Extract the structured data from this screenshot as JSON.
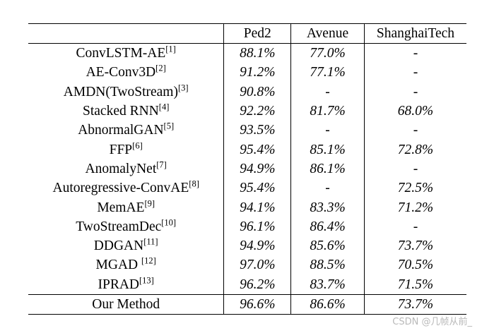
{
  "table": {
    "headers": [
      "",
      "Ped2",
      "Avenue",
      "ShanghaiTech"
    ],
    "rows": [
      {
        "method": "ConvLSTM-AE",
        "ref": "[1]",
        "ped2": "88.1%",
        "avenue": "77.0%",
        "shanghaitech": "-"
      },
      {
        "method": "AE-Conv3D",
        "ref": "[2]",
        "ped2": "91.2%",
        "avenue": "77.1%",
        "shanghaitech": "-"
      },
      {
        "method": "AMDN(TwoStream)",
        "ref": "[3]",
        "ped2": "90.8%",
        "avenue": "-",
        "shanghaitech": "-"
      },
      {
        "method": "Stacked RNN",
        "ref": "[4]",
        "ped2": "92.2%",
        "avenue": "81.7%",
        "shanghaitech": "68.0%"
      },
      {
        "method": "AbnormalGAN",
        "ref": "[5]",
        "ped2": "93.5%",
        "avenue": "-",
        "shanghaitech": "-"
      },
      {
        "method": "FFP",
        "ref": "[6]",
        "ped2": "95.4%",
        "avenue": "85.1%",
        "shanghaitech": "72.8%"
      },
      {
        "method": "AnomalyNet",
        "ref": "[7]",
        "ped2": "94.9%",
        "avenue": "86.1%",
        "shanghaitech": "-"
      },
      {
        "method": "Autoregressive-ConvAE",
        "ref": "[8]",
        "ped2": "95.4%",
        "avenue": "-",
        "shanghaitech": "72.5%"
      },
      {
        "method": "MemAE",
        "ref": "[9]",
        "ped2": "94.1%",
        "avenue": "83.3%",
        "shanghaitech": "71.2%"
      },
      {
        "method": "TwoStreamDec",
        "ref": "[10]",
        "ped2": "96.1%",
        "avenue": "86.4%",
        "shanghaitech": "-"
      },
      {
        "method": "DDGAN",
        "ref": "[11]",
        "ped2": "94.9%",
        "avenue": "85.6%",
        "shanghaitech": "73.7%"
      },
      {
        "method": "MGAD ",
        "ref": "[12]",
        "ped2": "97.0%",
        "avenue": "88.5%",
        "shanghaitech": "70.5%"
      },
      {
        "method": "IPRAD",
        "ref": "[13]",
        "ped2": "96.2%",
        "avenue": "83.7%",
        "shanghaitech": "71.5%"
      }
    ],
    "our_method": {
      "method": "Our Method",
      "ped2": "96.6%",
      "avenue": "86.6%",
      "shanghaitech": "73.7%"
    }
  },
  "watermark": "CSDN @几帧从前_"
}
